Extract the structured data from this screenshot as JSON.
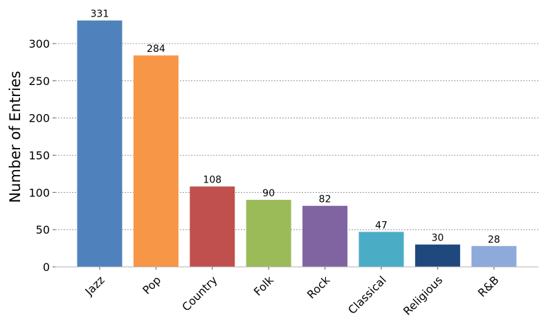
{
  "chart_data": {
    "type": "bar",
    "title": "",
    "xlabel": "",
    "ylabel": "Number of Entries",
    "ylim": [
      0,
      340
    ],
    "yticks": [
      0,
      50,
      100,
      150,
      200,
      250,
      300
    ],
    "grid": "horizontal dashed",
    "legend": "none",
    "categories": [
      "Jazz",
      "Pop",
      "Country",
      "Folk",
      "Rock",
      "Classical",
      "Religious",
      "R&B"
    ],
    "values": [
      331,
      284,
      108,
      90,
      82,
      47,
      30,
      28
    ],
    "colors": [
      "#4f81bd",
      "#f79646",
      "#c0504d",
      "#9bbb59",
      "#8064a2",
      "#4bacc6",
      "#1f497d",
      "#8eaadb"
    ]
  }
}
